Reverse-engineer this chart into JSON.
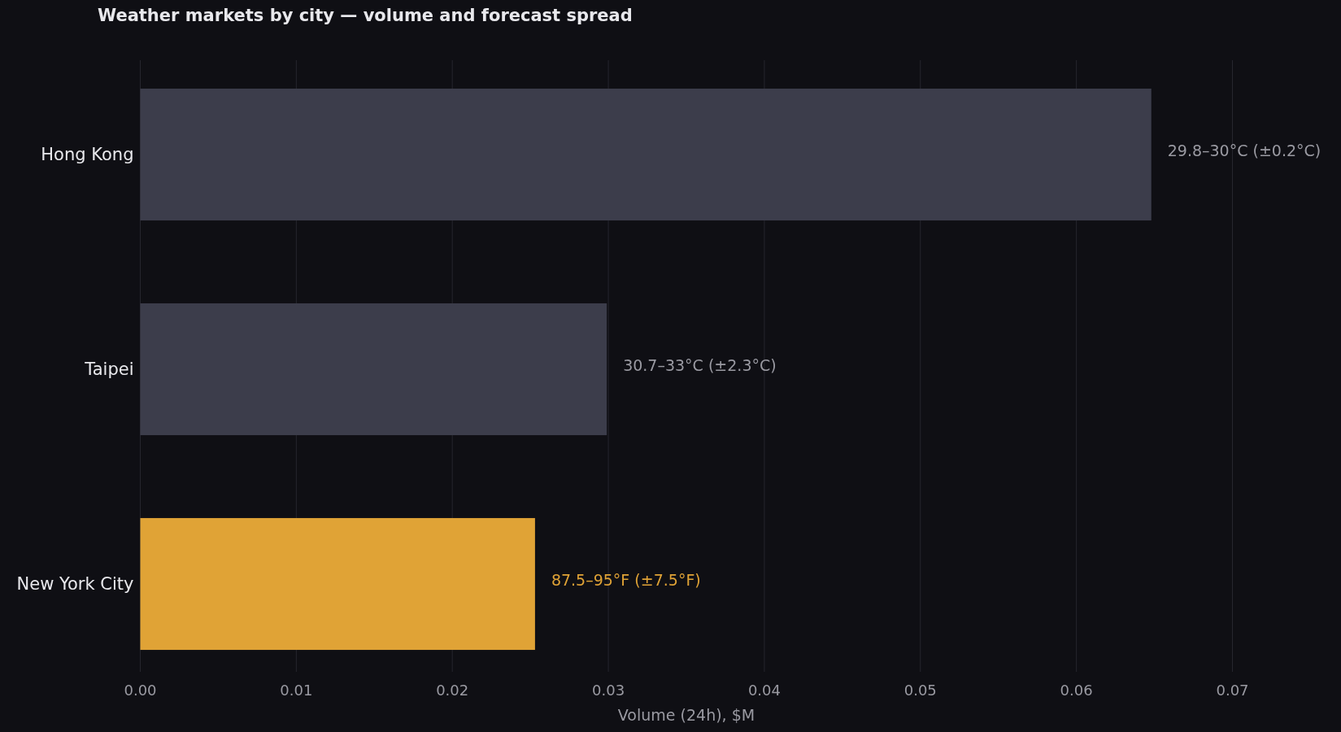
{
  "chart_data": {
    "type": "bar",
    "orientation": "horizontal",
    "title": "Weather markets by city — volume and forecast spread",
    "xlabel": "Volume (24h), $M",
    "categories": [
      "Hong Kong",
      "Taipei",
      "New York City"
    ],
    "values": [
      0.0648,
      0.0299,
      0.0253
    ],
    "colors": [
      "#3c3d4b",
      "#3c3d4b",
      "#e0a336"
    ],
    "xlim": [
      0,
      0.07
    ],
    "xticks": [
      {
        "value": 0,
        "label": "0.00"
      },
      {
        "value": 0.01,
        "label": "0.01"
      },
      {
        "value": 0.02,
        "label": "0.02"
      },
      {
        "value": 0.03,
        "label": "0.03"
      },
      {
        "value": 0.04,
        "label": "0.04"
      },
      {
        "value": 0.05,
        "label": "0.05"
      },
      {
        "value": 0.06,
        "label": "0.06"
      },
      {
        "value": 0.07,
        "label": "0.07"
      }
    ],
    "grid": "x",
    "annotations": [
      {
        "text": "29.8–30°C (±0.2°C)",
        "x": 0.0648,
        "y": "Hong Kong"
      },
      {
        "text": "30.7–33°C (±2.3°C)",
        "x": 0.0299,
        "y": "Taipei"
      },
      {
        "text": "87.5–95°F (±7.5°F)",
        "x": 0.0253,
        "y": "New York City"
      }
    ]
  }
}
